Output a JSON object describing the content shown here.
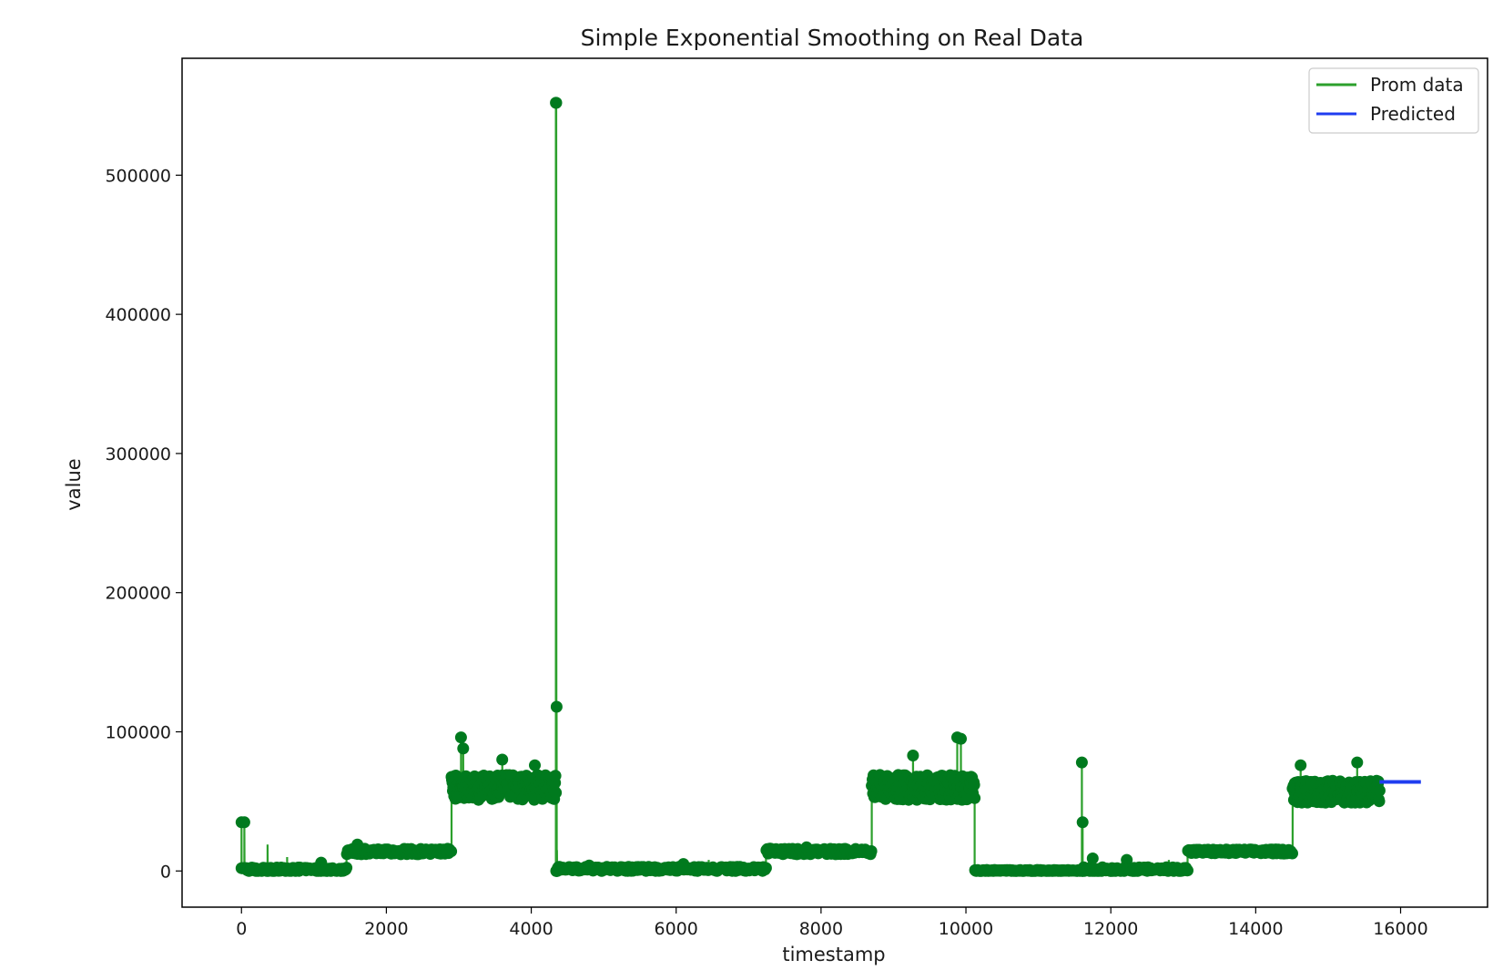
{
  "chart_data": {
    "type": "line",
    "title": "Simple Exponential Smoothing on Real Data",
    "xlabel": "timestamp",
    "ylabel": "value",
    "xlim": [
      -820,
      17200
    ],
    "ylim": [
      -26000,
      584000
    ],
    "xticks": [
      0,
      2000,
      4000,
      6000,
      8000,
      10000,
      12000,
      14000,
      16000
    ],
    "xtick_labels": [
      "0",
      "2000",
      "4000",
      "6000",
      "8000",
      "10000",
      "12000",
      "14000",
      "16000"
    ],
    "yticks": [
      0,
      100000,
      200000,
      300000,
      400000,
      500000
    ],
    "ytick_labels": [
      "0",
      "100000",
      "200000",
      "300000",
      "400000",
      "500000"
    ],
    "grid": false,
    "legend_position": "top-right",
    "series": [
      {
        "name": "Prom data",
        "color": "#007a1e",
        "legend_color": "#2ca02c",
        "markers": true,
        "segments": [
          {
            "x0": 0,
            "x1": 80,
            "level": 2000,
            "spread": 0,
            "spikes": [
              {
                "x": 0,
                "y": 35000
              },
              {
                "x": 40,
                "y": 35000
              }
            ]
          },
          {
            "x0": 80,
            "x1": 1450,
            "level": 1000,
            "spread": 1500,
            "spikes": [
              {
                "x": 200,
                "y": 6000
              },
              {
                "x": 360,
                "y": 19000
              },
              {
                "x": 630,
                "y": 10000
              },
              {
                "x": 1100,
                "y": 6000
              }
            ]
          },
          {
            "x0": 1450,
            "x1": 2900,
            "level": 14000,
            "spread": 2000,
            "spikes": [
              {
                "x": 1600,
                "y": 19000
              },
              {
                "x": 1700,
                "y": 18000
              }
            ]
          },
          {
            "x0": 2900,
            "x1": 4340,
            "level": 60000,
            "spread": 9000,
            "spikes": [
              {
                "x": 3030,
                "y": 96000
              },
              {
                "x": 3060,
                "y": 88000
              },
              {
                "x": 3600,
                "y": 80000
              },
              {
                "x": 4050,
                "y": 76000
              }
            ]
          },
          {
            "x0": 4340,
            "x1": 4350,
            "level": 0,
            "spread": 0,
            "spikes": [
              {
                "x": 4340,
                "y": 552000
              },
              {
                "x": 4345,
                "y": 552000
              },
              {
                "x": 4350,
                "y": 118000
              },
              {
                "x": 4355,
                "y": 15000
              }
            ]
          },
          {
            "x0": 4360,
            "x1": 7240,
            "level": 1500,
            "spread": 1500,
            "spikes": [
              {
                "x": 4800,
                "y": 4000
              },
              {
                "x": 6450,
                "y": 8000
              },
              {
                "x": 6100,
                "y": 5000
              }
            ]
          },
          {
            "x0": 7240,
            "x1": 8700,
            "level": 14000,
            "spread": 2000,
            "spikes": [
              {
                "x": 7800,
                "y": 17000
              }
            ]
          },
          {
            "x0": 8700,
            "x1": 10120,
            "level": 60000,
            "spread": 9000,
            "spikes": [
              {
                "x": 9270,
                "y": 83000
              },
              {
                "x": 9880,
                "y": 96000
              },
              {
                "x": 9930,
                "y": 95000
              }
            ]
          },
          {
            "x0": 10120,
            "x1": 11600,
            "level": 300,
            "spread": 400,
            "spikes": []
          },
          {
            "x0": 11600,
            "x1": 11620,
            "level": 0,
            "spread": 0,
            "spikes": [
              {
                "x": 11600,
                "y": 78000
              },
              {
                "x": 11610,
                "y": 35000
              }
            ]
          },
          {
            "x0": 11620,
            "x1": 13060,
            "level": 1200,
            "spread": 1500,
            "spikes": [
              {
                "x": 11750,
                "y": 9000
              },
              {
                "x": 12220,
                "y": 8000
              },
              {
                "x": 12800,
                "y": 8000
              }
            ]
          },
          {
            "x0": 13060,
            "x1": 14510,
            "level": 14000,
            "spread": 1500,
            "spikes": []
          },
          {
            "x0": 14510,
            "x1": 15710,
            "level": 57000,
            "spread": 8000,
            "spikes": [
              {
                "x": 14620,
                "y": 76000
              },
              {
                "x": 15400,
                "y": 78000
              }
            ]
          }
        ]
      },
      {
        "name": "Predicted",
        "color": "#1f3df0",
        "legend_color": "#1f3df0",
        "markers": false,
        "x": [
          15710,
          16280
        ],
        "y": [
          64000,
          64000
        ]
      }
    ]
  }
}
